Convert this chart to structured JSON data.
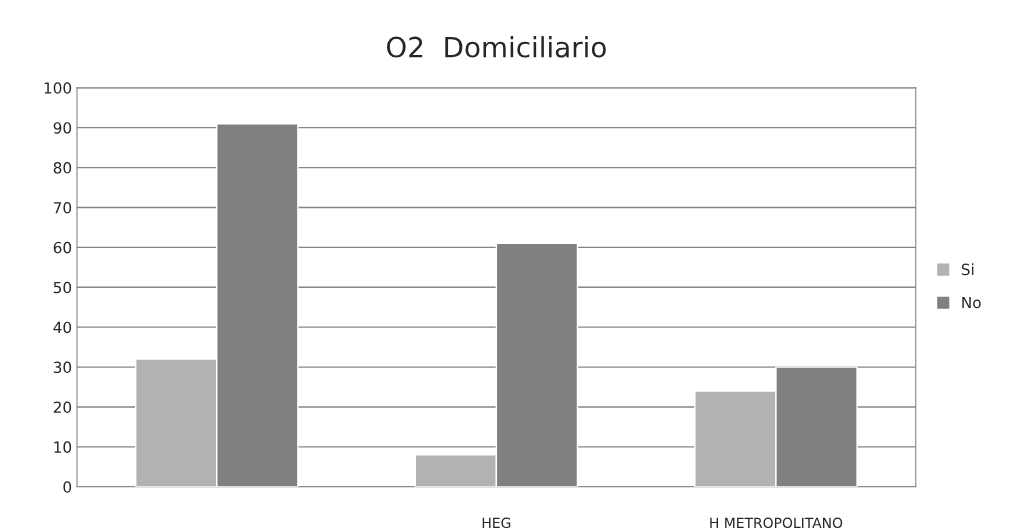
{
  "chart_data": {
    "type": "bar",
    "title": "O2  Domiciliario",
    "categories": [
      null,
      "HEG",
      "H METROPOLITANO"
    ],
    "series": [
      {
        "name": "Si",
        "color": "#b2b2b2",
        "values": [
          32,
          8,
          24
        ]
      },
      {
        "name": "No",
        "color": "#808080",
        "values": [
          91,
          61,
          30
        ]
      }
    ],
    "ylim": [
      0,
      100
    ],
    "yticks": [
      0,
      10,
      20,
      30,
      40,
      50,
      60,
      70,
      80,
      90,
      100
    ],
    "grid": "y",
    "legend": "right"
  }
}
